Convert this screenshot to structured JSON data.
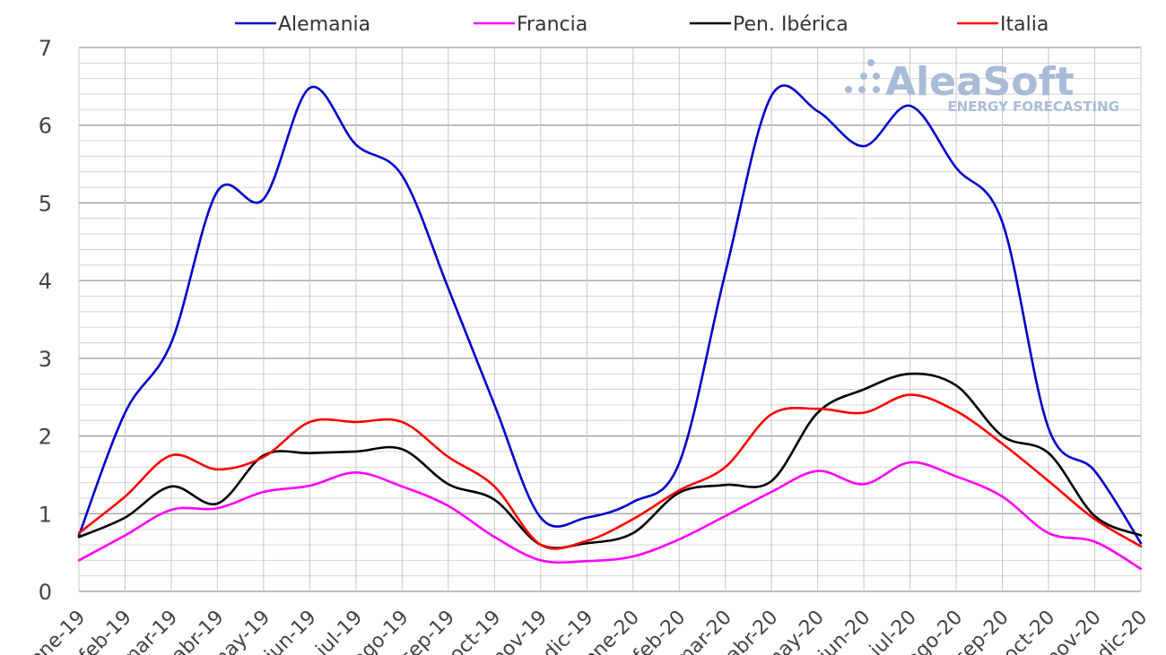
{
  "logo": {
    "name": "AleaSoft",
    "tagline": "ENERGY FORECASTING"
  },
  "chart_data": {
    "type": "line",
    "categories": [
      "ene-19",
      "feb-19",
      "mar-19",
      "abr-19",
      "may-19",
      "jun-19",
      "jul-19",
      "ago-19",
      "sep-19",
      "oct-19",
      "nov-19",
      "dic-19",
      "ene-20",
      "feb-20",
      "mar-20",
      "abr-20",
      "may-20",
      "jun-20",
      "jul-20",
      "ago-20",
      "sep-20",
      "oct-20",
      "nov-20",
      "dic-20"
    ],
    "ylim": [
      0,
      7
    ],
    "yticks": [
      0,
      1,
      2,
      3,
      4,
      5,
      6,
      7
    ],
    "grid": true,
    "legend_position": "top",
    "series": [
      {
        "name": "Alemania",
        "color": "#0000cc",
        "values": [
          0.72,
          2.3,
          3.2,
          5.15,
          5.05,
          6.48,
          5.75,
          5.35,
          3.9,
          2.4,
          0.95,
          0.95,
          1.15,
          1.65,
          4.1,
          6.38,
          6.18,
          5.73,
          6.25,
          5.45,
          4.75,
          2.1,
          1.55,
          0.62
        ]
      },
      {
        "name": "Francia",
        "color": "#ff00ff",
        "values": [
          0.4,
          0.72,
          1.05,
          1.07,
          1.28,
          1.36,
          1.53,
          1.35,
          1.1,
          0.7,
          0.4,
          0.39,
          0.45,
          0.67,
          0.97,
          1.28,
          1.55,
          1.38,
          1.66,
          1.48,
          1.22,
          0.75,
          0.64,
          0.29
        ]
      },
      {
        "name": "Pen. Ibérica",
        "color": "#000000",
        "values": [
          0.7,
          0.95,
          1.35,
          1.13,
          1.75,
          1.78,
          1.8,
          1.83,
          1.38,
          1.18,
          0.6,
          0.62,
          0.75,
          1.27,
          1.37,
          1.42,
          2.3,
          2.6,
          2.8,
          2.65,
          2.0,
          1.78,
          0.97,
          0.72
        ]
      },
      {
        "name": "Italia",
        "color": "#ff0000",
        "values": [
          0.75,
          1.22,
          1.75,
          1.57,
          1.73,
          2.18,
          2.18,
          2.18,
          1.73,
          1.35,
          0.6,
          0.65,
          0.93,
          1.3,
          1.6,
          2.28,
          2.35,
          2.3,
          2.53,
          2.32,
          1.9,
          1.42,
          0.93,
          0.58
        ]
      }
    ]
  }
}
